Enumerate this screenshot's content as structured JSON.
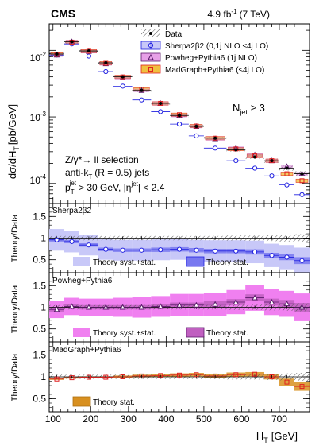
{
  "header": {
    "experiment": "CMS",
    "lumi_value": "4.9 fb",
    "lumi_exp": "-1",
    "lumi_energy": "(7 TeV)"
  },
  "ylabel_main": "dσ/dH",
  "ylabel_main_sub": "T",
  "ylabel_main_units": "[pb/GeV]",
  "ratio_ylabel": "Theory/Data",
  "xaxis": {
    "label": "H",
    "label_sub": "T",
    "units": "[GeV]",
    "ticks": [
      100,
      200,
      300,
      400,
      500,
      600,
      700
    ],
    "tick_labels": [
      "100",
      "200",
      "300",
      "400",
      "500",
      "600",
      "700"
    ],
    "range": [
      90,
      780
    ]
  },
  "main_yaxis": {
    "log": true,
    "range": [
      5e-05,
      0.025
    ],
    "tick_labels": [
      {
        "base": "10",
        "exp": "-2"
      },
      {
        "base": "10",
        "exp": "-3"
      },
      {
        "base": "10",
        "exp": "-4"
      }
    ]
  },
  "legend": {
    "items": [
      {
        "label": "Data"
      },
      {
        "label": "Sherpa2β2 (0,1j NLO ≤4j LO)"
      },
      {
        "label": "Powheg+Pythia6 (1j NLO)"
      },
      {
        "label": "MadGraph+Pythia6 (≤4j LO)"
      }
    ]
  },
  "annotations": {
    "njet_base": "N",
    "njet_sub": "jet",
    "njet_rest": "≥ 3",
    "sel1": "Z/γ*→ ll selection",
    "sel2_a": "anti-k",
    "sel2_sub": "T",
    "sel2_b": "(R = 0.5) jets",
    "sel3_a": "p",
    "sel3_sub": "T",
    "sel3_sup": "jet",
    "sel3_b": "> 30 GeV, |η",
    "sel3_sup2": "jet",
    "sel3_c": "| < 2.4"
  },
  "ratio_panels": [
    {
      "name": "Sherpa2β2",
      "yticks": [
        0.5,
        1,
        1.5
      ],
      "ytick_labels": [
        "0.5",
        "1",
        "1.5"
      ],
      "ylim": [
        0.2,
        1.8
      ],
      "legend_syst": "Theory syst.+stat.",
      "legend_stat": "Theory stat.",
      "colors": {
        "syst": "#c8c8f8",
        "stat": "#7878f0",
        "marker": "#2020e0"
      }
    },
    {
      "name": "Powheg+Pythia6",
      "yticks": [
        0.5,
        1,
        1.5
      ],
      "ytick_labels": [
        "0.5",
        "1",
        "1.5"
      ],
      "ylim": [
        0.2,
        1.8
      ],
      "legend_syst": "Theory syst.+stat.",
      "legend_stat": "Theory stat.",
      "colors": {
        "syst": "#f080f0",
        "stat": "#c060c0",
        "marker": "#5a1a6a"
      }
    },
    {
      "name": "MadGraph+Pythia6",
      "yticks": [
        0.5,
        1,
        1.5
      ],
      "ytick_labels": [
        "0.5",
        "1",
        "1.5"
      ],
      "ylim": [
        0.2,
        1.8
      ],
      "legend_stat": "Theory stat.",
      "colors": {
        "stat": "#d89020",
        "marker": "#e02020"
      }
    }
  ],
  "chart_data": {
    "type": "scatter",
    "bin_edges": [
      90,
      130,
      170,
      220,
      260,
      310,
      360,
      410,
      460,
      500,
      560,
      610,
      660,
      700,
      740,
      780
    ],
    "x": [
      110,
      150,
      195,
      240,
      285,
      335,
      385,
      435,
      480,
      530,
      585,
      635,
      680,
      720,
      760
    ],
    "series": [
      {
        "name": "Data",
        "values": [
          0.0088,
          0.0135,
          0.0098,
          0.0065,
          0.004,
          0.0025,
          0.0016,
          0.00105,
          0.00072,
          0.00048,
          0.00032,
          0.00025,
          0.00022,
          0.00017,
          0.00014
        ]
      },
      {
        "name": "Sherpa2β2 (0,1j NLO ≤4j LO)",
        "values": [
          0.0085,
          0.0125,
          0.0082,
          0.0048,
          0.0029,
          0.0018,
          0.0012,
          0.00078,
          0.00052,
          0.00034,
          0.00022,
          0.00017,
          0.00013,
          9.5e-05,
          6.8e-05
        ]
      },
      {
        "name": "Powheg+Pythia6 (1j NLO)",
        "values": [
          0.0085,
          0.0135,
          0.0096,
          0.0063,
          0.0039,
          0.0025,
          0.0016,
          0.00105,
          0.00072,
          0.00047,
          0.00034,
          0.00027,
          0.00022,
          0.00018,
          0.00014
        ]
      },
      {
        "name": "MadGraph+Pythia6 (≤4j LO)",
        "values": [
          0.0087,
          0.0133,
          0.0097,
          0.0064,
          0.004,
          0.0026,
          0.0016,
          0.00108,
          0.00073,
          0.00048,
          0.00033,
          0.00026,
          0.00022,
          0.00014,
          0.00011
        ]
      }
    ],
    "data_band_halfwidth": [
      0.05,
      0.05,
      0.05,
      0.05,
      0.05,
      0.05,
      0.05,
      0.05,
      0.05,
      0.05,
      0.06,
      0.06,
      0.07,
      0.08,
      0.09
    ],
    "ratios": {
      "sherpa": {
        "values": [
          0.96,
          0.92,
          0.84,
          0.74,
          0.72,
          0.72,
          0.73,
          0.74,
          0.72,
          0.7,
          0.7,
          0.68,
          0.6,
          0.56,
          0.48
        ],
        "stat": [
          0.04,
          0.04,
          0.04,
          0.04,
          0.04,
          0.04,
          0.05,
          0.05,
          0.05,
          0.05,
          0.05,
          0.06,
          0.06,
          0.07,
          0.08
        ],
        "syst": [
          0.25,
          0.25,
          0.24,
          0.24,
          0.24,
          0.24,
          0.24,
          0.24,
          0.24,
          0.25,
          0.25,
          0.26,
          0.27,
          0.28,
          0.3
        ]
      },
      "powheg": {
        "values": [
          0.95,
          1.02,
          1.0,
          1.0,
          1.0,
          1.0,
          1.02,
          1.05,
          1.05,
          1.07,
          1.12,
          1.22,
          1.12,
          1.08,
          1.0
        ],
        "stat": [
          0.05,
          0.05,
          0.05,
          0.05,
          0.05,
          0.05,
          0.06,
          0.06,
          0.06,
          0.07,
          0.07,
          0.08,
          0.08,
          0.09,
          0.1
        ],
        "syst": [
          0.2,
          0.2,
          0.2,
          0.2,
          0.22,
          0.24,
          0.24,
          0.26,
          0.26,
          0.27,
          0.28,
          0.3,
          0.3,
          0.3,
          0.32
        ]
      },
      "madgraph": {
        "values": [
          0.95,
          0.98,
          0.99,
          0.99,
          1.0,
          1.02,
          1.03,
          1.04,
          1.05,
          1.02,
          1.05,
          1.06,
          1.0,
          0.88,
          0.78
        ],
        "stat": [
          0.02,
          0.02,
          0.02,
          0.02,
          0.03,
          0.03,
          0.03,
          0.04,
          0.04,
          0.04,
          0.05,
          0.05,
          0.06,
          0.08,
          0.1
        ]
      }
    }
  }
}
